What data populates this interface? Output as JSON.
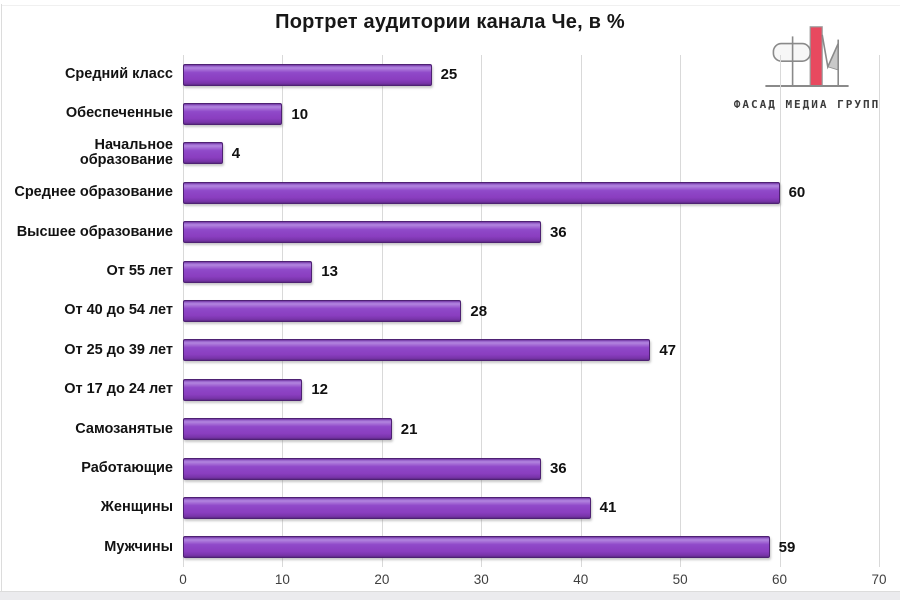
{
  "title": "Портрет аудитории канала Че, в %",
  "logo": {
    "name": "fasad-media-grupp-logo",
    "text": "ФАСАД МЕДИА ГРУПП",
    "accent_color": "#e8495f",
    "line_color": "#8a8a8a"
  },
  "chart_data": {
    "type": "bar",
    "orientation": "horizontal",
    "title": "Портрет аудитории канала Че, в %",
    "categories": [
      "Средний класс",
      "Обеспеченные",
      "Начальное образование",
      "Среднее образование",
      "Высшее образование",
      "От 55 лет",
      "От 40 до 54 лет",
      "От 25 до 39 лет",
      "От 17 до 24 лет",
      "Самозанятые",
      "Работающие",
      "Женщины",
      "Мужчины"
    ],
    "values": [
      25,
      10,
      4,
      60,
      36,
      13,
      28,
      47,
      12,
      21,
      36,
      41,
      59
    ],
    "xlabel": "",
    "ylabel": "",
    "xlim": [
      0,
      70
    ],
    "xticks": [
      0,
      10,
      20,
      30,
      40,
      50,
      60,
      70
    ],
    "grid": true,
    "legend": false,
    "value_labels": true,
    "bar_color": "#8a3ec0",
    "bar_border_color": "#4e2173",
    "gridline_color": "#d9d9d9"
  }
}
